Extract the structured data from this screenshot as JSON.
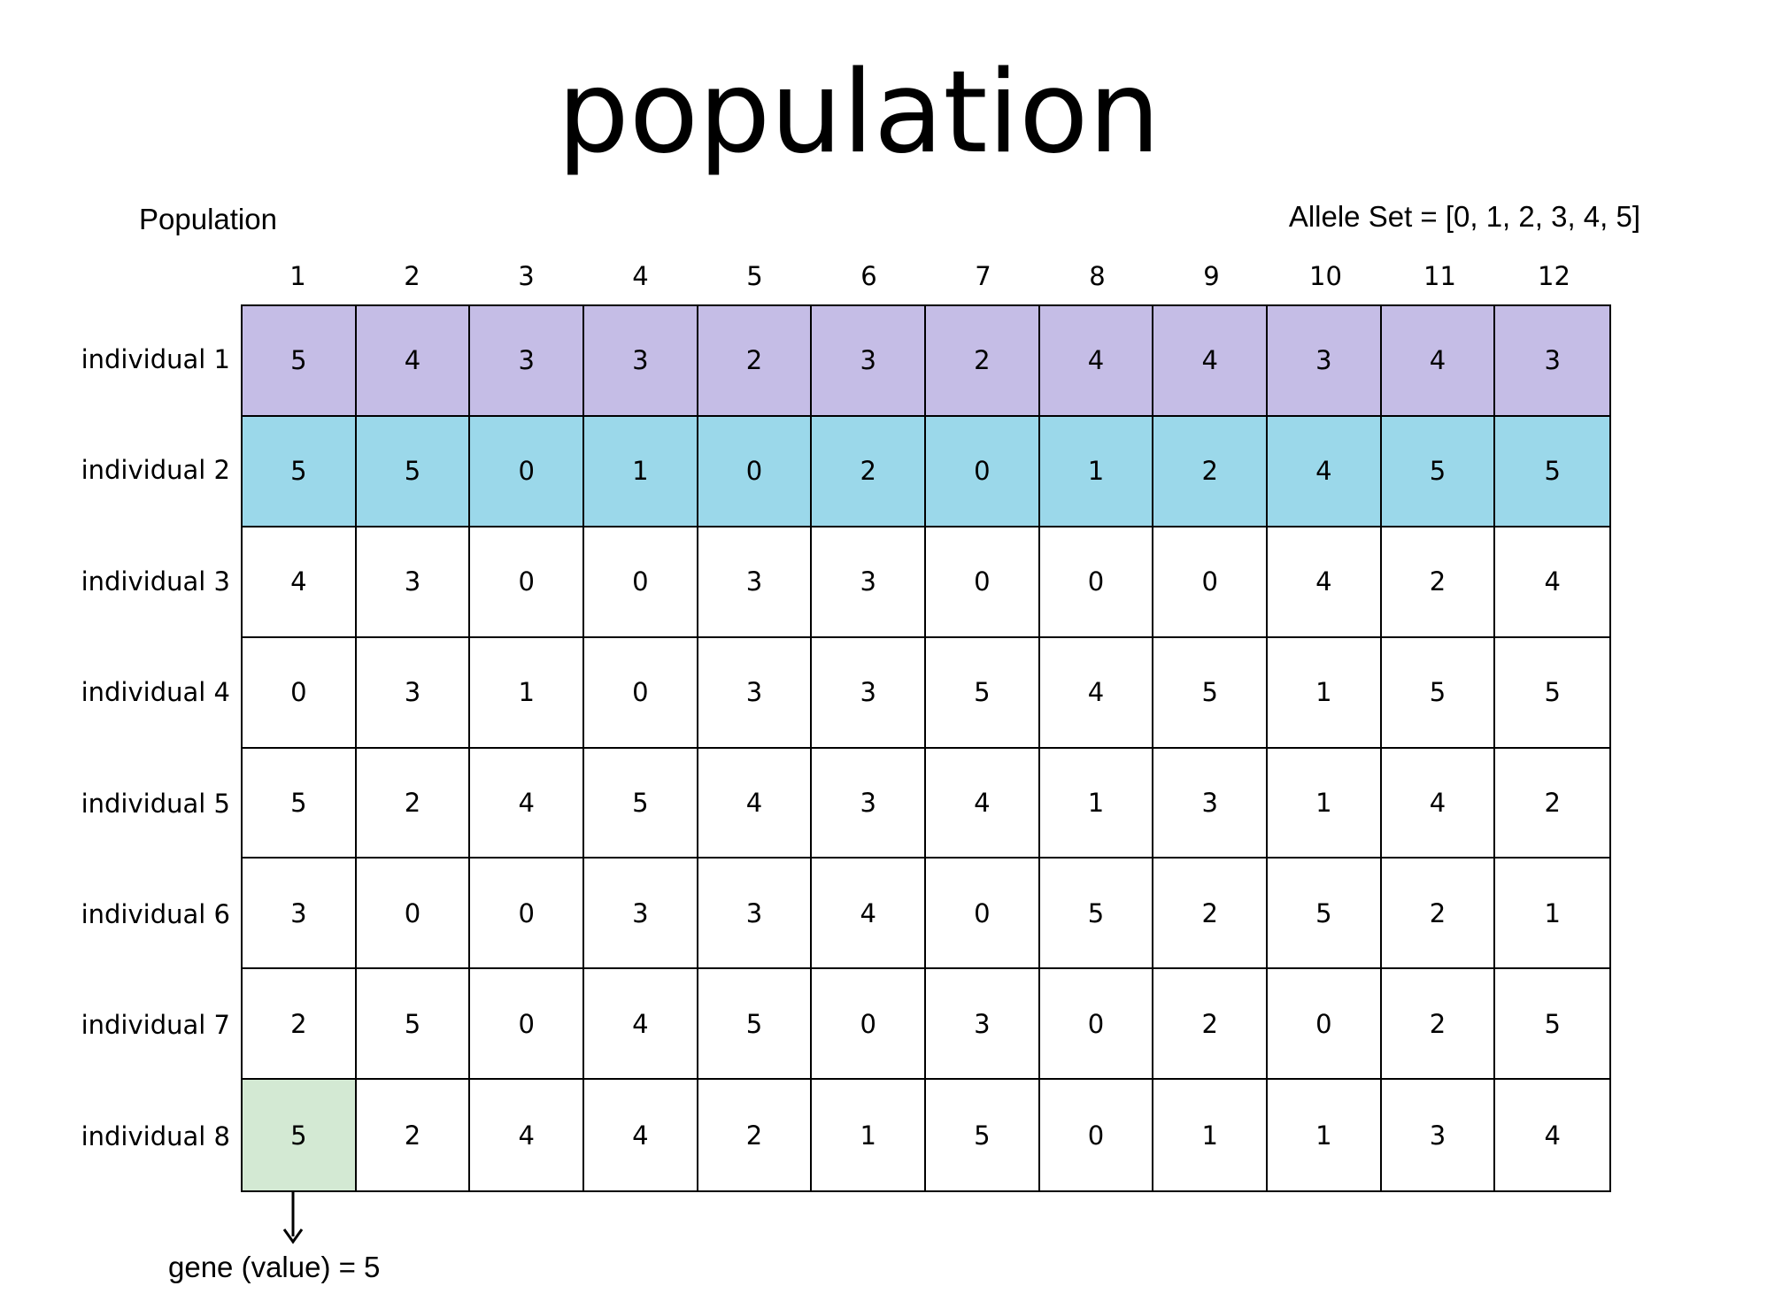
{
  "title": "population",
  "population_label": "Population",
  "allele_set_label": "Allele Set = [0, 1, 2, 3, 4, 5]",
  "columns": [
    "1",
    "2",
    "3",
    "4",
    "5",
    "6",
    "7",
    "8",
    "9",
    "10",
    "11",
    "12"
  ],
  "rows": [
    {
      "label": "individual 1",
      "values": [
        5,
        4,
        3,
        3,
        2,
        3,
        2,
        4,
        4,
        3,
        4,
        3
      ],
      "color": "#c5bde6"
    },
    {
      "label": "individual 2",
      "values": [
        5,
        5,
        0,
        1,
        0,
        2,
        0,
        1,
        2,
        4,
        5,
        5
      ],
      "color": "#9bd8ea"
    },
    {
      "label": "individual 3",
      "values": [
        4,
        3,
        0,
        0,
        3,
        3,
        0,
        0,
        0,
        4,
        2,
        4
      ],
      "color": "#ffffff"
    },
    {
      "label": "individual 4",
      "values": [
        0,
        3,
        1,
        0,
        3,
        3,
        5,
        4,
        5,
        1,
        5,
        5
      ],
      "color": "#ffffff"
    },
    {
      "label": "individual 5",
      "values": [
        5,
        2,
        4,
        5,
        4,
        3,
        4,
        1,
        3,
        1,
        4,
        2
      ],
      "color": "#ffffff"
    },
    {
      "label": "individual 6",
      "values": [
        3,
        0,
        0,
        3,
        3,
        4,
        0,
        5,
        2,
        5,
        2,
        1
      ],
      "color": "#ffffff"
    },
    {
      "label": "individual 7",
      "values": [
        2,
        5,
        0,
        4,
        5,
        0,
        3,
        0,
        2,
        0,
        2,
        5
      ],
      "color": "#ffffff"
    },
    {
      "label": "individual 8",
      "values": [
        5,
        2,
        4,
        4,
        2,
        1,
        5,
        0,
        1,
        1,
        3,
        4
      ],
      "color": "#ffffff"
    }
  ],
  "highlight_cell": {
    "row": 7,
    "col": 0,
    "color": "#d3e9d3"
  },
  "gene_label": "gene (value) = 5"
}
